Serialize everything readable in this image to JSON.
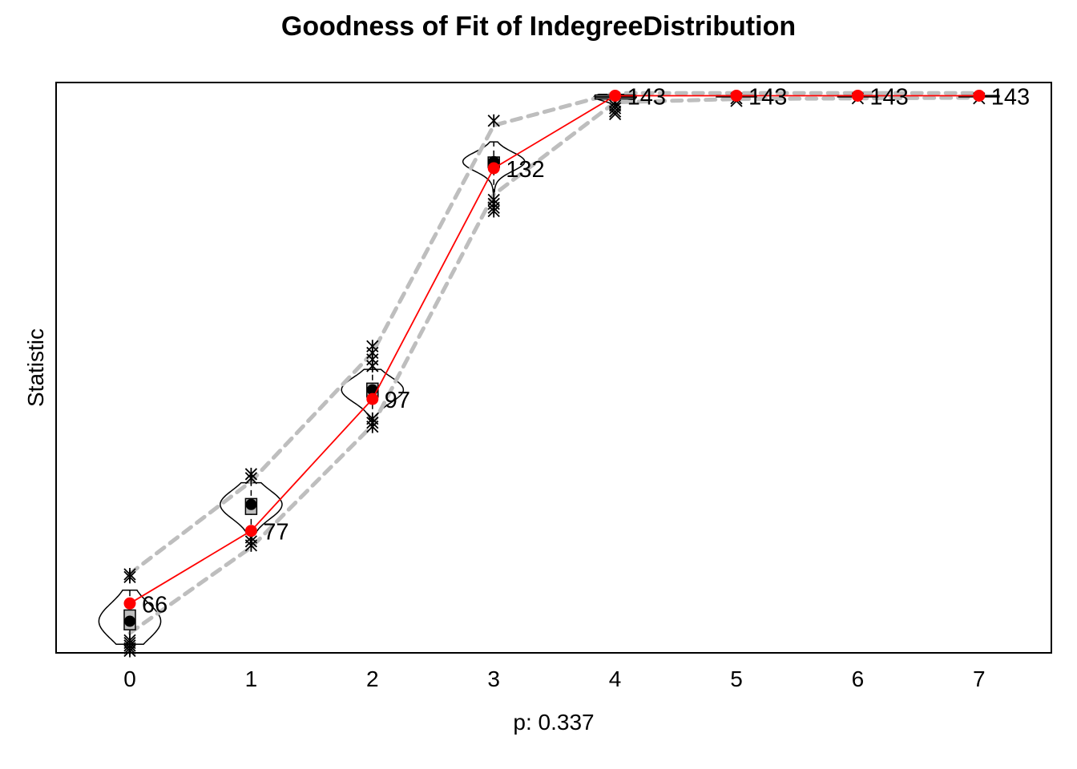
{
  "chart_data": {
    "type": "line",
    "title": "Goodness of Fit of IndegreeDistribution",
    "xlabel": "p: 0.337",
    "ylabel": "Statistic",
    "categories": [
      "0",
      "1",
      "2",
      "3",
      "4",
      "5",
      "6",
      "7"
    ],
    "ylim": [
      58.5,
      145
    ],
    "grid": false,
    "series": [
      {
        "role": "observed",
        "color": "#ff0000",
        "values": [
          66,
          77,
          97,
          132,
          143,
          143,
          143,
          143
        ],
        "labels": [
          "66",
          "77",
          "97",
          "132",
          "143",
          "143",
          "143",
          "143"
        ]
      }
    ],
    "simulated": {
      "color": "#000000",
      "median": [
        63.3,
        81.0,
        98.4,
        133.0,
        142.8,
        143,
        143,
        143
      ],
      "q1": [
        62.0,
        79.5,
        97.3,
        132.1,
        142.5,
        143,
        143,
        143
      ],
      "q3": [
        65.0,
        81.9,
        99.4,
        133.7,
        143.1,
        143,
        143,
        143
      ],
      "whisker_low": [
        59.8,
        76.5,
        94.0,
        128.0,
        141.5,
        142.8,
        142.8,
        142.8
      ],
      "whisker_high": [
        68.0,
        84.3,
        101.5,
        136.0,
        143.2,
        143.1,
        143.1,
        143.1
      ],
      "outliers": [
        [
          58.8,
          59.2,
          59.6,
          60.0,
          60.4,
          70.0,
          70.4
        ],
        [
          74.8,
          75.4,
          76.0,
          85.0,
          85.6
        ],
        [
          92.8,
          93.4,
          94.0,
          102.0,
          103.0,
          104.0,
          105.0
        ],
        [
          125.5,
          126.0,
          126.6,
          127.2,
          139.2
        ],
        [
          140.2,
          140.6,
          141.1,
          141.5,
          142.0
        ],
        [
          142.2,
          142.6
        ],
        [
          142.6
        ],
        [
          142.6
        ]
      ]
    },
    "interval_bands": {
      "color": "#bebebe",
      "lower": [
        61.5,
        74.5,
        93.0,
        128.0,
        142.0,
        142.5,
        142.6,
        142.7
      ],
      "upper": [
        70.5,
        84.5,
        104.0,
        138.5,
        143.4,
        143.4,
        143.4,
        143.4
      ]
    }
  }
}
